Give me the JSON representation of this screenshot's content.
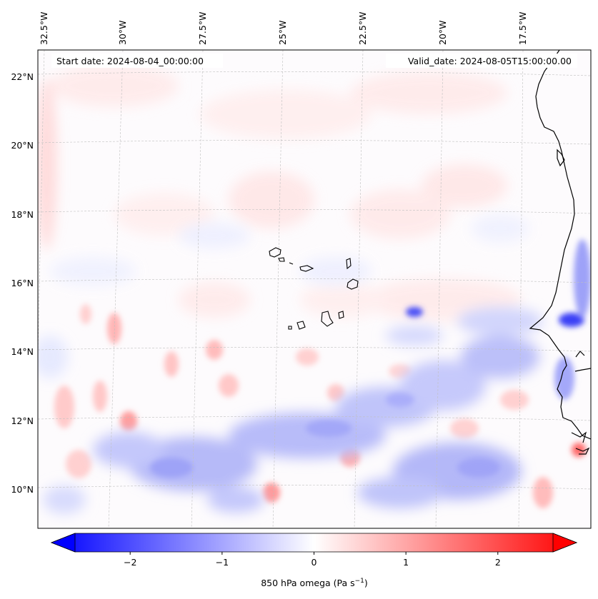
{
  "header": {
    "start_date": "Start date: 2024-08-04_00:00:00",
    "valid_date": "Valid_date: 2024-08-05T15:00:00.00"
  },
  "map": {
    "variable": "850 hPa omega",
    "lon_labels": [
      "32.5°W",
      "30°W",
      "27.5°W",
      "25°W",
      "22.5°W",
      "20°W",
      "17.5°W"
    ],
    "lat_labels": [
      "22°N",
      "20°N",
      "18°N",
      "16°N",
      "14°N",
      "12°N",
      "10°N"
    ]
  },
  "colorbar": {
    "label": "850 hPa omega (Pa s",
    "label_sup": "−1",
    "label_end": ")",
    "ticks": [
      "−2",
      "−1",
      "0",
      "1",
      "2"
    ],
    "tick_values": [
      -2,
      -1,
      0,
      1,
      2
    ],
    "vmin": -2.6,
    "vmax": 2.6,
    "negative_color": "#0000ff",
    "zero_color": "#ffffff",
    "positive_color": "#ff0000"
  },
  "colors": {
    "coastline": "#000000",
    "gridline": "#b0b0b0",
    "frame": "#000000"
  }
}
